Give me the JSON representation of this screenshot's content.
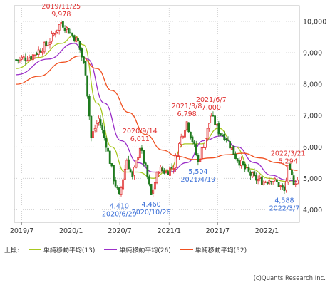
{
  "chart_data": {
    "type": "candlestick",
    "xlabel": "",
    "ylabel": "",
    "ylim": [
      3600,
      10500
    ],
    "x_ticks": [
      "2019/7",
      "2020/1",
      "2020/7",
      "2021/1",
      "2021/7",
      "2022/1"
    ],
    "y_ticks": [
      4000,
      5000,
      6000,
      7000,
      8000,
      9000,
      10000
    ],
    "y_tick_labels": [
      "4,000",
      "5,000",
      "6,000",
      "7,000",
      "8,000",
      "9,000",
      "10,000"
    ],
    "x_range": [
      "2019-06-03",
      "2022-05-02"
    ],
    "grid": true,
    "up_color": "#e03030",
    "down_color": "#1e7a1e",
    "price_anchors": [
      {
        "date": "2019-06-10",
        "value": 8780
      },
      {
        "date": "2019-08-05",
        "value": 8880
      },
      {
        "date": "2019-10-07",
        "value": 9300
      },
      {
        "date": "2019-11-25",
        "value": 9978
      },
      {
        "date": "2019-12-23",
        "value": 9700
      },
      {
        "date": "2020-01-27",
        "value": 9350
      },
      {
        "date": "2020-02-24",
        "value": 8400
      },
      {
        "date": "2020-03-16",
        "value": 6300
      },
      {
        "date": "2020-04-13",
        "value": 6900
      },
      {
        "date": "2020-05-11",
        "value": 6100
      },
      {
        "date": "2020-06-08",
        "value": 5000
      },
      {
        "date": "2020-06-29",
        "value": 4410
      },
      {
        "date": "2020-07-27",
        "value": 5600
      },
      {
        "date": "2020-08-17",
        "value": 5000
      },
      {
        "date": "2020-09-14",
        "value": 6011
      },
      {
        "date": "2020-10-05",
        "value": 5300
      },
      {
        "date": "2020-10-26",
        "value": 4460
      },
      {
        "date": "2020-11-23",
        "value": 5300
      },
      {
        "date": "2020-12-21",
        "value": 5200
      },
      {
        "date": "2021-01-18",
        "value": 5400
      },
      {
        "date": "2021-02-15",
        "value": 6300
      },
      {
        "date": "2021-03-08",
        "value": 6798
      },
      {
        "date": "2021-04-05",
        "value": 6000
      },
      {
        "date": "2021-04-19",
        "value": 5504
      },
      {
        "date": "2021-05-17",
        "value": 6300
      },
      {
        "date": "2021-06-07",
        "value": 7000
      },
      {
        "date": "2021-07-05",
        "value": 6500
      },
      {
        "date": "2021-08-02",
        "value": 6300
      },
      {
        "date": "2021-09-06",
        "value": 5700
      },
      {
        "date": "2021-10-11",
        "value": 5300
      },
      {
        "date": "2021-11-15",
        "value": 5000
      },
      {
        "date": "2021-12-20",
        "value": 4900
      },
      {
        "date": "2022-01-17",
        "value": 5000
      },
      {
        "date": "2022-02-14",
        "value": 4800
      },
      {
        "date": "2022-03-07",
        "value": 4588
      },
      {
        "date": "2022-03-21",
        "value": 5294
      },
      {
        "date": "2022-04-11",
        "value": 4900
      },
      {
        "date": "2022-04-25",
        "value": 4950
      }
    ],
    "series": [
      {
        "name": "単純移動平均(13)",
        "color": "#a8c820",
        "anchors": [
          {
            "date": "2019-06-10",
            "value": 8500
          },
          {
            "date": "2019-09-02",
            "value": 8850
          },
          {
            "date": "2019-11-25",
            "value": 9300
          },
          {
            "date": "2020-01-13",
            "value": 9550
          },
          {
            "date": "2020-02-17",
            "value": 9250
          },
          {
            "date": "2020-04-06",
            "value": 7400
          },
          {
            "date": "2020-06-01",
            "value": 6000
          },
          {
            "date": "2020-07-20",
            "value": 5200
          },
          {
            "date": "2020-09-07",
            "value": 5200
          },
          {
            "date": "2020-11-02",
            "value": 5000
          },
          {
            "date": "2020-12-28",
            "value": 5250
          },
          {
            "date": "2021-03-01",
            "value": 6100
          },
          {
            "date": "2021-05-03",
            "value": 6100
          },
          {
            "date": "2021-07-05",
            "value": 6600
          },
          {
            "date": "2021-09-06",
            "value": 6000
          },
          {
            "date": "2021-11-01",
            "value": 5300
          },
          {
            "date": "2022-01-10",
            "value": 5000
          },
          {
            "date": "2022-03-14",
            "value": 4900
          },
          {
            "date": "2022-04-25",
            "value": 4950
          }
        ]
      },
      {
        "name": "単純移動平均(26)",
        "color": "#9b30c8",
        "anchors": [
          {
            "date": "2019-06-10",
            "value": 8300
          },
          {
            "date": "2019-10-07",
            "value": 8800
          },
          {
            "date": "2020-01-13",
            "value": 9300
          },
          {
            "date": "2020-03-02",
            "value": 8800
          },
          {
            "date": "2020-05-04",
            "value": 7400
          },
          {
            "date": "2020-07-06",
            "value": 6200
          },
          {
            "date": "2020-09-07",
            "value": 5500
          },
          {
            "date": "2020-11-02",
            "value": 5200
          },
          {
            "date": "2021-01-04",
            "value": 5200
          },
          {
            "date": "2021-03-08",
            "value": 5500
          },
          {
            "date": "2021-05-10",
            "value": 6200
          },
          {
            "date": "2021-07-12",
            "value": 6350
          },
          {
            "date": "2021-09-13",
            "value": 6000
          },
          {
            "date": "2021-11-15",
            "value": 5500
          },
          {
            "date": "2022-01-17",
            "value": 5100
          },
          {
            "date": "2022-03-14",
            "value": 4950
          },
          {
            "date": "2022-04-25",
            "value": 4900
          }
        ]
      },
      {
        "name": "単純移動平均(52)",
        "color": "#f05020",
        "anchors": [
          {
            "date": "2019-06-10",
            "value": 8000
          },
          {
            "date": "2019-09-02",
            "value": 8250
          },
          {
            "date": "2019-12-02",
            "value": 8700
          },
          {
            "date": "2020-02-03",
            "value": 8900
          },
          {
            "date": "2020-04-06",
            "value": 8500
          },
          {
            "date": "2020-06-01",
            "value": 7800
          },
          {
            "date": "2020-08-03",
            "value": 7100
          },
          {
            "date": "2020-10-05",
            "value": 6400
          },
          {
            "date": "2020-12-07",
            "value": 5900
          },
          {
            "date": "2021-02-01",
            "value": 5700
          },
          {
            "date": "2021-04-05",
            "value": 5600
          },
          {
            "date": "2021-06-07",
            "value": 5650
          },
          {
            "date": "2021-08-02",
            "value": 5750
          },
          {
            "date": "2021-10-04",
            "value": 5800
          },
          {
            "date": "2021-12-06",
            "value": 5650
          },
          {
            "date": "2022-02-07",
            "value": 5500
          },
          {
            "date": "2022-04-25",
            "value": 5250
          }
        ]
      }
    ],
    "annotations": [
      {
        "date": "2019-11-25",
        "value": 9978,
        "lines": [
          "2019/11/25",
          "9,978"
        ],
        "color": "#e03030",
        "side": "above"
      },
      {
        "date": "2020-09-14",
        "value": 6011,
        "lines": [
          "2020/9/14",
          "6,011"
        ],
        "color": "#e03030",
        "side": "above"
      },
      {
        "date": "2021-03-08",
        "value": 6798,
        "lines": [
          "2021/3/8",
          "6,798"
        ],
        "color": "#e03030",
        "side": "above"
      },
      {
        "date": "2021-06-07",
        "value": 7000,
        "lines": [
          "2021/6/7",
          "7,000"
        ],
        "color": "#e03030",
        "side": "above"
      },
      {
        "date": "2022-03-21",
        "value": 5294,
        "lines": [
          "2022/3/21",
          "5,294"
        ],
        "color": "#e03030",
        "side": "above"
      },
      {
        "date": "2020-06-29",
        "value": 4410,
        "lines": [
          "4,410",
          "2020/6/29"
        ],
        "color": "#3a6fd8",
        "side": "below"
      },
      {
        "date": "2020-10-26",
        "value": 4460,
        "lines": [
          "4,460",
          "2020/10/26"
        ],
        "color": "#3a6fd8",
        "side": "below"
      },
      {
        "date": "2021-04-19",
        "value": 5504,
        "lines": [
          "5,504",
          "2021/4/19"
        ],
        "color": "#3a6fd8",
        "side": "below"
      },
      {
        "date": "2022-03-07",
        "value": 4588,
        "lines": [
          "4,588",
          "2022/3/7"
        ],
        "color": "#3a6fd8",
        "side": "below"
      }
    ]
  },
  "legend": {
    "prefix": "上段:",
    "items": [
      {
        "label": "単純移動平均(13)",
        "color": "#a8c820"
      },
      {
        "label": "単純移動平均(26)",
        "color": "#9b30c8"
      },
      {
        "label": "単純移動平均(52)",
        "color": "#f05020"
      }
    ]
  },
  "copyright": "(c)Quants Research Inc."
}
